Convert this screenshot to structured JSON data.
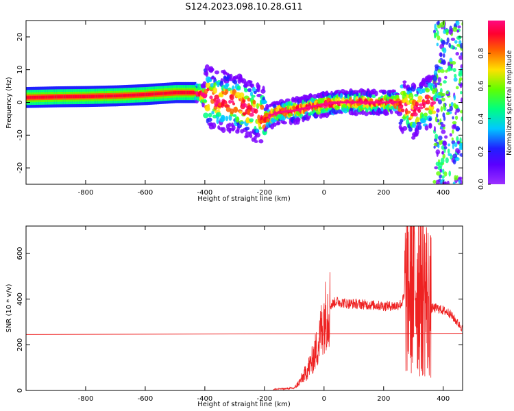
{
  "title": "S124.2023.098.10.28.G11",
  "colors": {
    "snr_line": "#ee2222",
    "threshold_line": "#ee2222",
    "colormap": [
      "#7b00ff",
      "#2020ff",
      "#00c8ff",
      "#00ff80",
      "#60ff00",
      "#ffe000",
      "#ff6000",
      "#ff0030",
      "#ff0a80"
    ]
  },
  "chart_data": [
    {
      "type": "heatmap",
      "xlabel": "Height of straight line (km)",
      "ylabel": "Frequency (Hz)",
      "xlim": [
        -1000,
        465
      ],
      "ylim": [
        -25,
        25
      ],
      "x_ticks": [
        -800,
        -600,
        -400,
        -200,
        0,
        200,
        400
      ],
      "y_ticks": [
        -20,
        -10,
        0,
        10,
        20
      ],
      "ridge": {
        "x": [
          -1000,
          -900,
          -800,
          -700,
          -600,
          -500,
          -430,
          -400,
          -350,
          -300,
          -250,
          -200,
          -180,
          -150,
          -100,
          -50,
          0,
          50,
          100,
          150,
          200,
          250,
          300,
          350
        ],
        "frequency": [
          1.5,
          1.7,
          1.8,
          2.0,
          2.4,
          3.0,
          3.0,
          2.0,
          0.5,
          0,
          -2,
          -5,
          -4,
          -3,
          -2.5,
          -1.5,
          -0.5,
          0,
          0,
          0,
          0,
          0,
          -3,
          0
        ]
      },
      "colorbar": {
        "label": "Normalized spectral amplitude",
        "ticks": [
          0.0,
          0.2,
          0.4,
          0.6,
          0.8
        ],
        "range": [
          0,
          1
        ]
      },
      "grid": false
    },
    {
      "type": "line",
      "xlabel": "Height of straight line (km)",
      "ylabel": "SNR (10 * v/v)",
      "xlim": [
        -1000,
        465
      ],
      "ylim": [
        0,
        720
      ],
      "x_ticks": [
        -800,
        -600,
        -400,
        -200,
        0,
        200,
        400
      ],
      "y_ticks": [
        0,
        200,
        400,
        600
      ],
      "series": [
        {
          "x": [
            -170,
            -100,
            -80,
            -60,
            -40,
            -20,
            0,
            20,
            40,
            60,
            80,
            100,
            150,
            200,
            240,
            260,
            280,
            300,
            320,
            340,
            360,
            380,
            420,
            465
          ],
          "y": [
            5,
            10,
            40,
            80,
            130,
            200,
            320,
            370,
            390,
            385,
            380,
            380,
            375,
            370,
            370,
            380,
            450,
            480,
            470,
            430,
            360,
            360,
            340,
            270
          ]
        },
        {
          "x": [
            -1000,
            465
          ],
          "y": [
            245,
            250
          ]
        }
      ],
      "grid": false
    }
  ]
}
